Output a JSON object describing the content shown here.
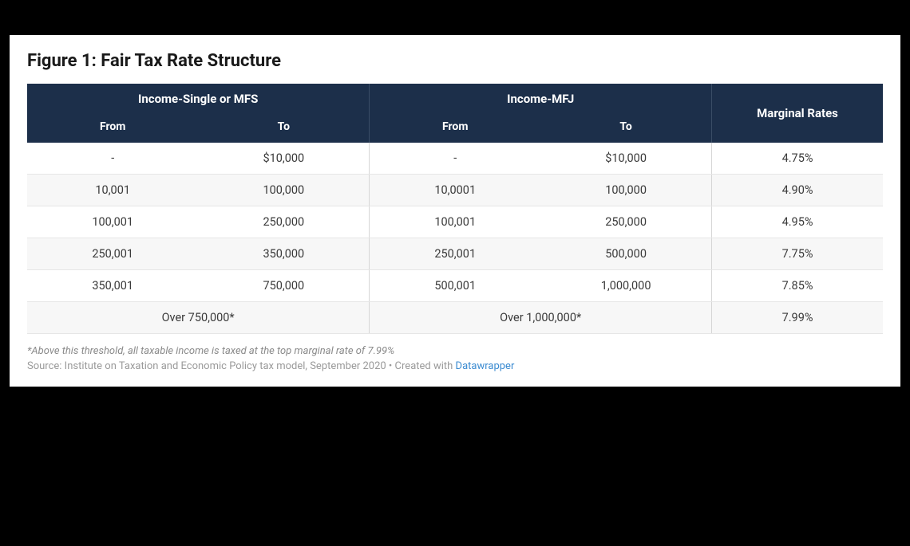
{
  "title": "Figure 1: Fair Tax Rate Structure",
  "colors": {
    "page_bg": "#000000",
    "card_bg": "#ffffff",
    "header_bg": "#1c2f4a",
    "header_text": "#ffffff",
    "body_text": "#3b3b3b",
    "row_alt_bg": "#f7f7f7",
    "border": "#e6e6e6",
    "footnote_text": "#8a8a8a",
    "link": "#3b8bd1"
  },
  "table": {
    "group_headers": {
      "single": "Income-Single or MFS",
      "mfj": "Income-MFJ",
      "rates": "Marginal Rates"
    },
    "sub_headers": {
      "from": "From",
      "to": "To"
    },
    "rows": [
      {
        "s_from": "-",
        "s_to": "$10,000",
        "m_from": "-",
        "m_to": "$10,000",
        "rate": "4.75%"
      },
      {
        "s_from": "10,001",
        "s_to": "100,000",
        "m_from": "10,0001",
        "m_to": "100,000",
        "rate": "4.90%"
      },
      {
        "s_from": "100,001",
        "s_to": "250,000",
        "m_from": "100,001",
        "m_to": "250,000",
        "rate": "4.95%"
      },
      {
        "s_from": "250,001",
        "s_to": "350,000",
        "m_from": "250,001",
        "m_to": "500,000",
        "rate": "7.75%"
      },
      {
        "s_from": "350,001",
        "s_to": "750,000",
        "m_from": "500,001",
        "m_to": "1,000,000",
        "rate": "7.85%"
      },
      {
        "s_span": "Over 750,000*",
        "m_span": "Over 1,000,000*",
        "rate": "7.99%"
      }
    ],
    "column_widths_pct": [
      15,
      20,
      15,
      25,
      25
    ]
  },
  "footnote": "*Above this threshold, all taxable income is taxed at the top marginal rate of 7.99%",
  "source_prefix": "Source: Institute on Taxation and Economic Policy tax model, September 2020 • Created with ",
  "source_link_text": "Datawrapper"
}
